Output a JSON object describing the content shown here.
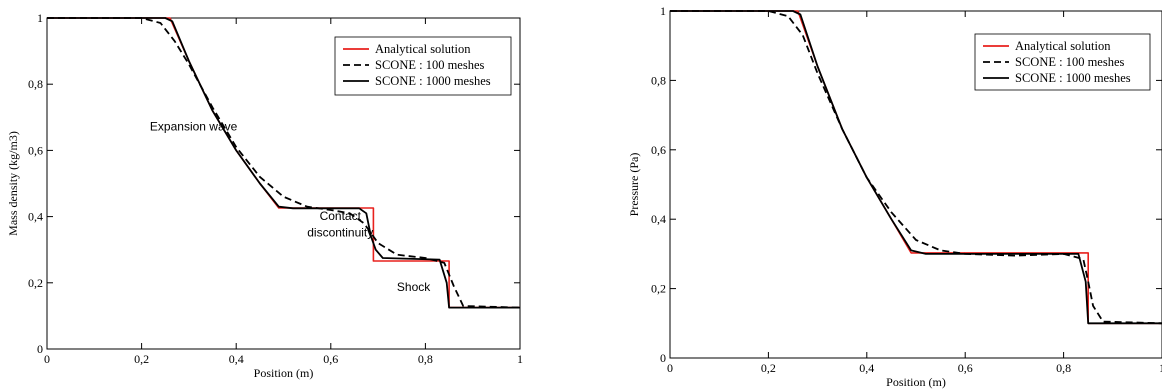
{
  "chart_data": [
    {
      "type": "line",
      "xlabel": "Position (m)",
      "ylabel": "Mass density (kg/m3)",
      "xlim": [
        0,
        1
      ],
      "ylim": [
        0,
        1
      ],
      "xticks": [
        "0",
        "0,2",
        "0,4",
        "0,6",
        "0,8",
        "1"
      ],
      "yticks": [
        "0",
        "0,2",
        "0,4",
        "0,6",
        "0,8",
        "1"
      ],
      "grid": false,
      "legend_position": "top-right",
      "annotations": [
        {
          "text": "Expansion wave",
          "x": 0.31,
          "y": 0.66
        },
        {
          "text": "Contact",
          "x": 0.62,
          "y": 0.39
        },
        {
          "text": "discontinuity",
          "x": 0.62,
          "y": 0.34
        },
        {
          "text": "Shock",
          "x": 0.775,
          "y": 0.175
        }
      ],
      "series": [
        {
          "name": "Analytical solution",
          "color": "#e8211d",
          "style": "solid",
          "x": [
            0,
            0.26,
            0.3,
            0.35,
            0.4,
            0.45,
            0.49,
            0.69,
            0.69,
            0.85,
            0.85,
            1
          ],
          "y": [
            1,
            1,
            0.87,
            0.72,
            0.6,
            0.5,
            0.426,
            0.426,
            0.266,
            0.266,
            0.125,
            0.125
          ]
        },
        {
          "name": "SCONE : 100 meshes",
          "color": "#000000",
          "style": "dashed",
          "x": [
            0,
            0.2,
            0.24,
            0.27,
            0.3,
            0.35,
            0.4,
            0.45,
            0.5,
            0.55,
            0.6,
            0.64,
            0.67,
            0.7,
            0.74,
            0.8,
            0.84,
            0.86,
            0.88,
            1
          ],
          "y": [
            1,
            1,
            0.985,
            0.93,
            0.86,
            0.73,
            0.61,
            0.52,
            0.46,
            0.43,
            0.42,
            0.41,
            0.38,
            0.32,
            0.285,
            0.275,
            0.26,
            0.19,
            0.13,
            0.125
          ]
        },
        {
          "name": "SCONE : 1000 meshes",
          "color": "#000000",
          "style": "solid",
          "x": [
            0,
            0.25,
            0.265,
            0.3,
            0.35,
            0.4,
            0.45,
            0.49,
            0.52,
            0.66,
            0.675,
            0.685,
            0.695,
            0.71,
            0.83,
            0.845,
            0.85,
            1
          ],
          "y": [
            1,
            1,
            0.99,
            0.87,
            0.72,
            0.6,
            0.5,
            0.43,
            0.425,
            0.425,
            0.41,
            0.34,
            0.3,
            0.275,
            0.27,
            0.2,
            0.125,
            0.125
          ]
        }
      ]
    },
    {
      "type": "line",
      "xlabel": "Position (m)",
      "ylabel": "Pressure (Pa)",
      "xlim": [
        0,
        1
      ],
      "ylim": [
        0,
        1
      ],
      "xticks": [
        "0",
        "0,2",
        "0,4",
        "0,6",
        "0,8",
        "1"
      ],
      "yticks": [
        "0",
        "0,2",
        "0,4",
        "0,6",
        "0,8",
        "1"
      ],
      "grid": false,
      "legend_position": "top-right",
      "annotations": [],
      "series": [
        {
          "name": "Analytical solution",
          "color": "#e8211d",
          "style": "solid",
          "x": [
            0,
            0.26,
            0.3,
            0.35,
            0.4,
            0.45,
            0.49,
            0.85,
            0.85,
            1
          ],
          "y": [
            1,
            1,
            0.84,
            0.66,
            0.52,
            0.4,
            0.303,
            0.303,
            0.1,
            0.1
          ]
        },
        {
          "name": "SCONE : 100 meshes",
          "color": "#000000",
          "style": "dashed",
          "x": [
            0,
            0.2,
            0.24,
            0.27,
            0.3,
            0.35,
            0.4,
            0.45,
            0.5,
            0.55,
            0.6,
            0.7,
            0.8,
            0.84,
            0.85,
            0.86,
            0.88,
            1
          ],
          "y": [
            1,
            1,
            0.985,
            0.93,
            0.82,
            0.66,
            0.52,
            0.42,
            0.34,
            0.31,
            0.3,
            0.295,
            0.3,
            0.285,
            0.22,
            0.15,
            0.105,
            0.1
          ]
        },
        {
          "name": "SCONE : 1000 meshes",
          "color": "#000000",
          "style": "solid",
          "x": [
            0,
            0.25,
            0.265,
            0.3,
            0.35,
            0.4,
            0.45,
            0.49,
            0.52,
            0.83,
            0.845,
            0.85,
            1
          ],
          "y": [
            1,
            1,
            0.99,
            0.84,
            0.66,
            0.52,
            0.4,
            0.31,
            0.3,
            0.3,
            0.22,
            0.1,
            0.1
          ]
        }
      ]
    }
  ]
}
